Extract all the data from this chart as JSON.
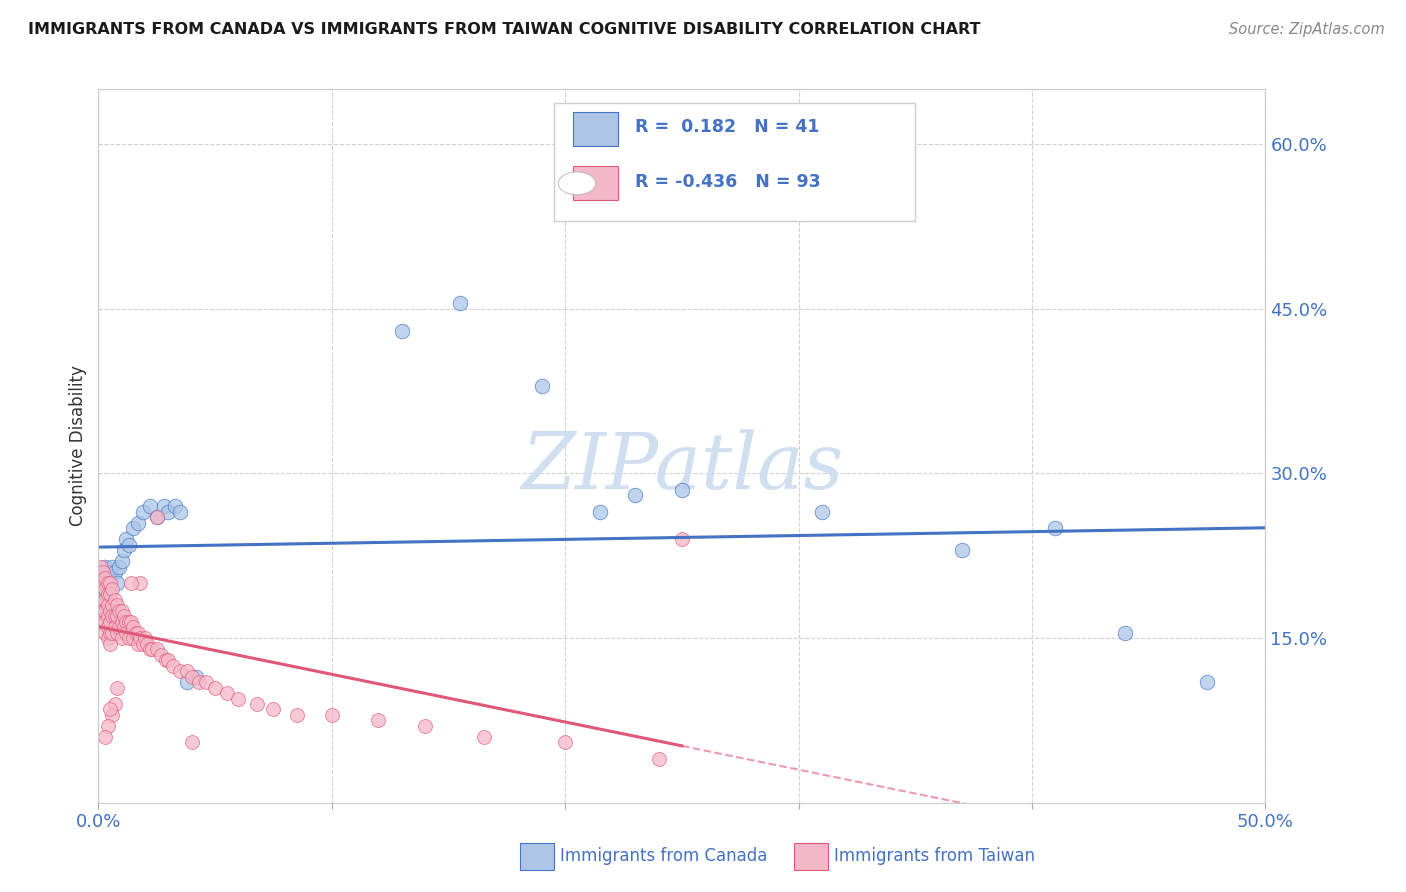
{
  "title": "IMMIGRANTS FROM CANADA VS IMMIGRANTS FROM TAIWAN COGNITIVE DISABILITY CORRELATION CHART",
  "source": "Source: ZipAtlas.com",
  "ylabel": "Cognitive Disability",
  "canada_R": 0.182,
  "canada_N": 41,
  "taiwan_R": -0.436,
  "taiwan_N": 93,
  "canada_color": "#adc6e8",
  "taiwan_color": "#f5b8c8",
  "canada_line_color": "#4472c4",
  "taiwan_line_color": "#e05878",
  "background_color": "#ffffff",
  "title_color": "#1a1a1a",
  "axis_color": "#4472c4",
  "grid_color": "#cccccc",
  "watermark_color": "#d0dff0",
  "xlim": [
    0.0,
    0.5
  ],
  "ylim": [
    0.0,
    0.65
  ],
  "ytick_vals": [
    0.15,
    0.3,
    0.45,
    0.6
  ],
  "xtick_vals": [
    0.0,
    0.5
  ],
  "canada_x": [
    0.001,
    0.001,
    0.002,
    0.002,
    0.003,
    0.003,
    0.003,
    0.004,
    0.004,
    0.005,
    0.005,
    0.006,
    0.007,
    0.008,
    0.009,
    0.01,
    0.011,
    0.012,
    0.013,
    0.015,
    0.017,
    0.019,
    0.022,
    0.025,
    0.028,
    0.03,
    0.033,
    0.035,
    0.038,
    0.042,
    0.13,
    0.155,
    0.19,
    0.215,
    0.23,
    0.25,
    0.31,
    0.37,
    0.41,
    0.44,
    0.475
  ],
  "canada_y": [
    0.21,
    0.2,
    0.205,
    0.195,
    0.215,
    0.2,
    0.195,
    0.205,
    0.18,
    0.21,
    0.195,
    0.215,
    0.21,
    0.2,
    0.215,
    0.22,
    0.23,
    0.24,
    0.235,
    0.25,
    0.255,
    0.265,
    0.27,
    0.26,
    0.27,
    0.265,
    0.27,
    0.265,
    0.11,
    0.115,
    0.43,
    0.455,
    0.38,
    0.265,
    0.28,
    0.285,
    0.265,
    0.23,
    0.25,
    0.155,
    0.11
  ],
  "taiwan_x": [
    0.001,
    0.001,
    0.001,
    0.001,
    0.002,
    0.002,
    0.002,
    0.002,
    0.002,
    0.003,
    0.003,
    0.003,
    0.003,
    0.003,
    0.003,
    0.004,
    0.004,
    0.004,
    0.004,
    0.004,
    0.004,
    0.005,
    0.005,
    0.005,
    0.005,
    0.005,
    0.005,
    0.006,
    0.006,
    0.006,
    0.006,
    0.007,
    0.007,
    0.007,
    0.008,
    0.008,
    0.008,
    0.009,
    0.009,
    0.01,
    0.01,
    0.01,
    0.011,
    0.011,
    0.012,
    0.012,
    0.013,
    0.013,
    0.014,
    0.015,
    0.015,
    0.016,
    0.017,
    0.017,
    0.018,
    0.019,
    0.02,
    0.021,
    0.022,
    0.023,
    0.025,
    0.027,
    0.029,
    0.03,
    0.032,
    0.035,
    0.038,
    0.04,
    0.043,
    0.046,
    0.05,
    0.055,
    0.06,
    0.068,
    0.075,
    0.085,
    0.1,
    0.12,
    0.14,
    0.165,
    0.2,
    0.24,
    0.025,
    0.018,
    0.008,
    0.007,
    0.006,
    0.005,
    0.004,
    0.003,
    0.25,
    0.014,
    0.04
  ],
  "taiwan_y": [
    0.215,
    0.2,
    0.19,
    0.18,
    0.21,
    0.2,
    0.185,
    0.175,
    0.165,
    0.205,
    0.195,
    0.185,
    0.175,
    0.165,
    0.155,
    0.2,
    0.19,
    0.18,
    0.17,
    0.16,
    0.15,
    0.2,
    0.19,
    0.175,
    0.165,
    0.155,
    0.145,
    0.195,
    0.18,
    0.17,
    0.155,
    0.185,
    0.17,
    0.16,
    0.18,
    0.17,
    0.155,
    0.175,
    0.16,
    0.175,
    0.165,
    0.15,
    0.17,
    0.16,
    0.165,
    0.155,
    0.165,
    0.15,
    0.165,
    0.16,
    0.15,
    0.155,
    0.155,
    0.145,
    0.15,
    0.145,
    0.15,
    0.145,
    0.14,
    0.14,
    0.14,
    0.135,
    0.13,
    0.13,
    0.125,
    0.12,
    0.12,
    0.115,
    0.11,
    0.11,
    0.105,
    0.1,
    0.095,
    0.09,
    0.085,
    0.08,
    0.08,
    0.075,
    0.07,
    0.06,
    0.055,
    0.04,
    0.26,
    0.2,
    0.105,
    0.09,
    0.08,
    0.085,
    0.07,
    0.06,
    0.24,
    0.2,
    0.055
  ]
}
